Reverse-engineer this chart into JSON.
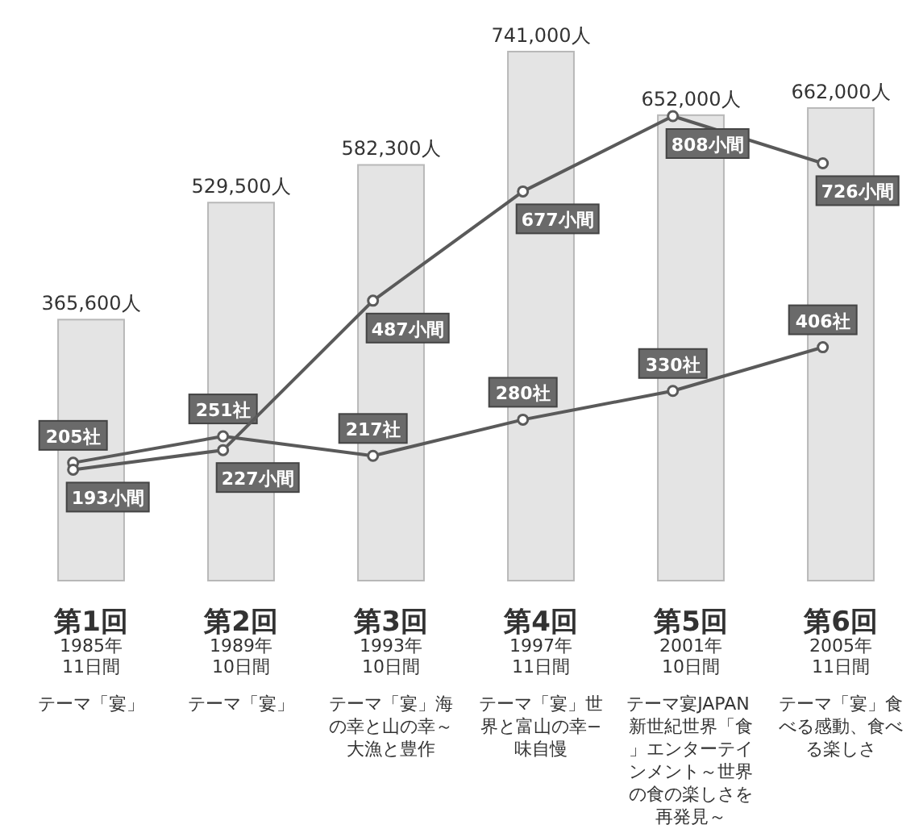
{
  "chart_data": {
    "type": "bar",
    "categories": [
      "第1回\n1985年\n11日間",
      "第2回\n1989年\n10日間",
      "第3回\n1993年\n10日間",
      "第4回\n1997年\n11日間",
      "第5回\n2001年\n10日間",
      "第6回\n2005年\n11日間"
    ],
    "annotations": [
      "テーマ「宴」",
      "テーマ「宴」",
      "テーマ「宴」海の幸と山の幸～大漁と豊作",
      "テーマ「宴」世界と富山の幸−味自慢",
      "テーマ宴JAPAN 新世紀世界「食」エンターテインメント～世界の食の楽しさを再発見～",
      "テーマ「宴」食べる感動、食べる楽しさ"
    ],
    "series": [
      {
        "color": "#e4e4e4",
        "values": [
          365600,
          529500,
          582300,
          741000,
          652000,
          662000
        ],
        "value_labels": [
          "365,600人",
          "529,500人",
          "582,300人",
          "741,000人",
          "652,000人",
          "662,000人"
        ]
      },
      {
        "type": "line",
        "axis": "y2",
        "color": "#5a5a5a",
        "values": [
          205,
          251,
          217,
          280,
          330,
          406
        ],
        "value_labels": [
          "205社",
          "251社",
          "217社",
          "280社",
          "330社",
          "406社"
        ]
      },
      {
        "type": "line",
        "axis": "y2",
        "color": "#5a5a5a",
        "values": [
          193,
          227,
          487,
          677,
          808,
          726
        ],
        "value_labels": [
          "193小間",
          "227小間",
          "487小間",
          "677小間",
          "808小間",
          "726小間"
        ]
      }
    ],
    "tick_labels": false,
    "marker": "circle",
    "line_style": "solid"
  }
}
